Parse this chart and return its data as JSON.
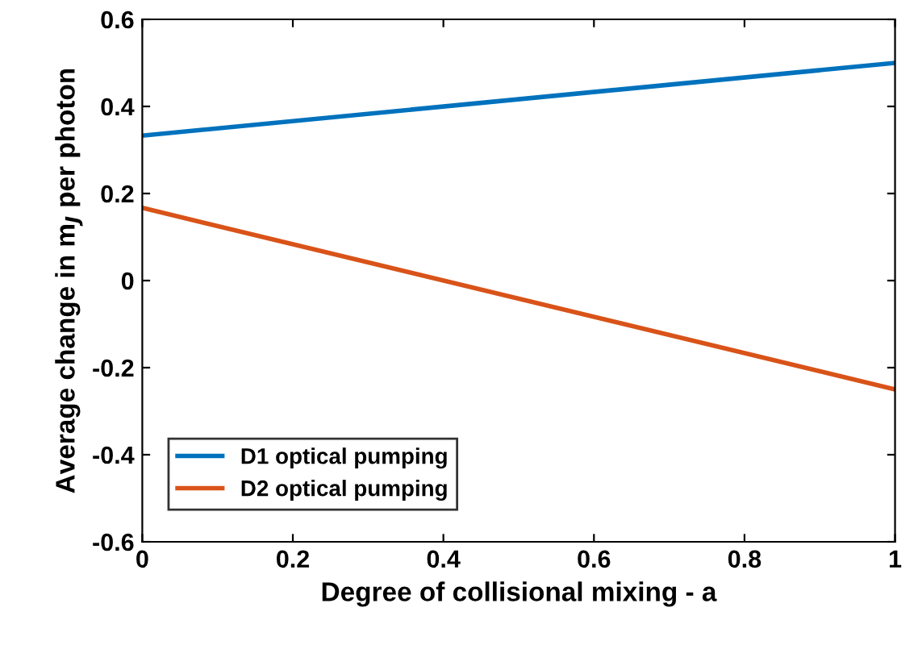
{
  "chart_data": {
    "type": "line",
    "xlabel": "Degree of collisional mixing - a",
    "ylabel": "Average change in m$_{J}$ per photon",
    "x": [
      0,
      1
    ],
    "series": [
      {
        "name": "D1 optical pumping",
        "color": "#0072bd",
        "values": [
          0.333,
          0.5
        ]
      },
      {
        "name": "D2 optical pumping",
        "color": "#d95319",
        "values": [
          0.167,
          -0.25
        ]
      }
    ],
    "xlim": [
      0,
      1
    ],
    "ylim": [
      -0.6,
      0.6
    ],
    "xticks": [
      0,
      0.2,
      0.4,
      0.6,
      0.8,
      1
    ],
    "yticks": [
      {
        "value": -0.6,
        "label": "-0.6"
      },
      {
        "value": -0.4,
        "label": "-0.4"
      },
      {
        "value": -0.2,
        "label": "-0.2"
      },
      0,
      0.2,
      0.4,
      0.6
    ],
    "grid": false,
    "legend": "bottom left",
    "marker": "none",
    "line_style": "solid"
  }
}
